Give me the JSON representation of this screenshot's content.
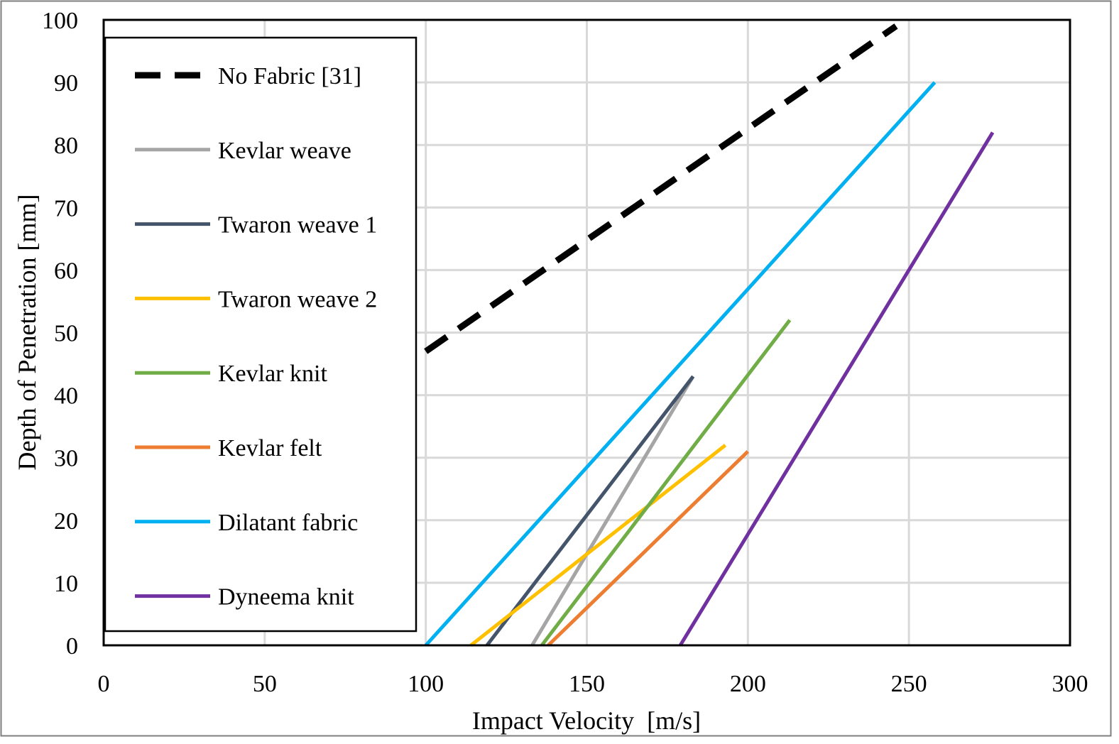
{
  "chart_data": {
    "type": "line",
    "title": "",
    "xlabel": "Impact Velocity  [m/s]",
    "ylabel": "Depth of Penetration [mm]",
    "xlim": [
      0,
      300
    ],
    "ylim": [
      0,
      100
    ],
    "xticks": [
      0,
      50,
      100,
      150,
      200,
      250,
      300
    ],
    "yticks": [
      0,
      10,
      20,
      30,
      40,
      50,
      60,
      70,
      80,
      90,
      100
    ],
    "grid": true,
    "legend_position": "left",
    "series": [
      {
        "name": "No Fabric [31]",
        "color": "#000000",
        "dash": "dashed",
        "x": [
          100,
          246
        ],
        "y": [
          47,
          99
        ]
      },
      {
        "name": "Kevlar weave",
        "color": "#a5a5a5",
        "dash": "solid",
        "x": [
          133,
          183
        ],
        "y": [
          0,
          43
        ]
      },
      {
        "name": "Twaron weave 1",
        "color": "#44546a",
        "dash": "solid",
        "x": [
          119,
          183
        ],
        "y": [
          0,
          43
        ]
      },
      {
        "name": "Twaron weave 2",
        "color": "#ffc000",
        "dash": "solid",
        "x": [
          114,
          193
        ],
        "y": [
          0,
          32
        ]
      },
      {
        "name": "Kevlar knit",
        "color": "#70ad47",
        "dash": "solid",
        "x": [
          136,
          213
        ],
        "y": [
          0,
          52
        ]
      },
      {
        "name": "Kevlar felt",
        "color": "#ed7d31",
        "dash": "solid",
        "x": [
          138,
          200
        ],
        "y": [
          0,
          31
        ]
      },
      {
        "name": "Dilatant fabric",
        "color": "#00b0f0",
        "dash": "solid",
        "x": [
          100,
          258
        ],
        "y": [
          0,
          90
        ]
      },
      {
        "name": "Dyneema knit",
        "color": "#7030a0",
        "dash": "solid",
        "x": [
          179,
          276
        ],
        "y": [
          0,
          82
        ]
      }
    ]
  }
}
